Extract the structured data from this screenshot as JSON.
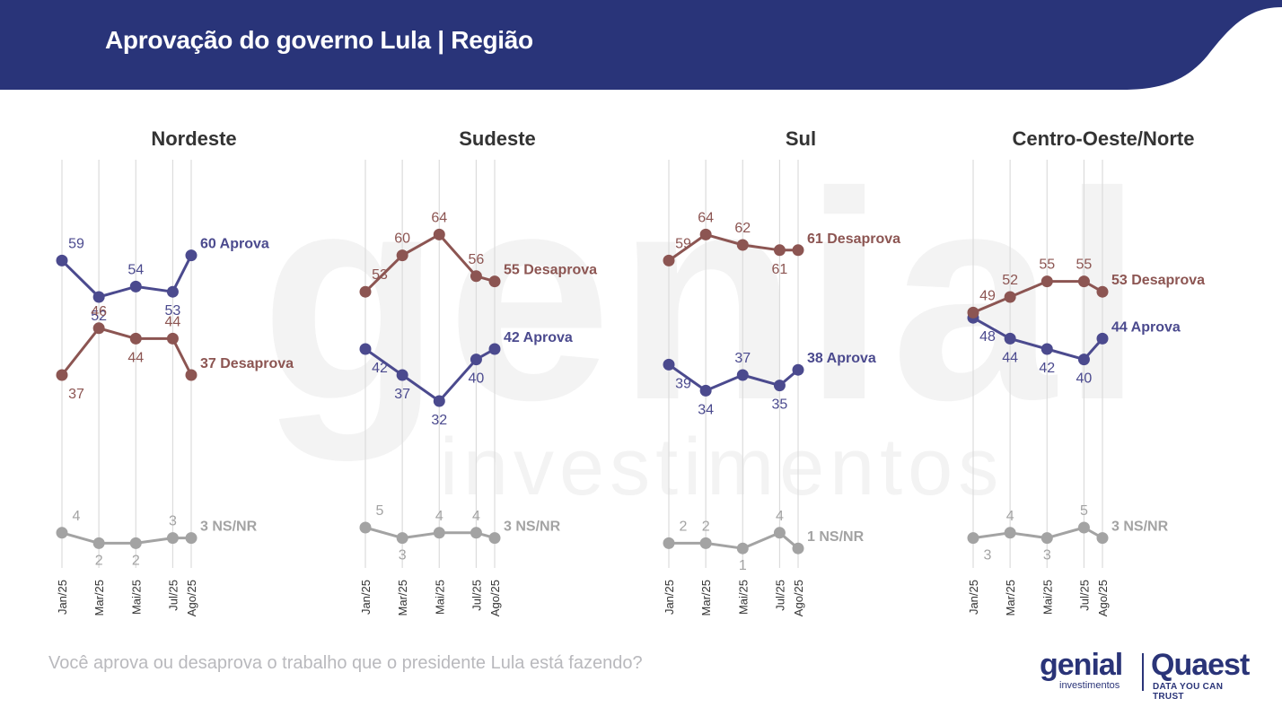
{
  "header": {
    "title": "Aprovação do governo Lula | Região"
  },
  "watermark": {
    "big": "genial",
    "small": "investimentos"
  },
  "footer": {
    "question": "Você aprova ou desaprova o trabalho que o presidente Lula está fazendo?"
  },
  "logos": {
    "genial": "genial",
    "genial_sub": "investimentos",
    "quaest": "Quaest",
    "quaest_tagline": "DATA YOU CAN TRUST"
  },
  "colors": {
    "header_bg": "#293479",
    "aprova": "#4b4a8e",
    "desaprova": "#8c5552",
    "nsnr": "#a3a3a3",
    "title": "#333333",
    "grid": "#dcdcdc",
    "tick": "#333333"
  },
  "chart_data": [
    {
      "type": "line",
      "title": "Nordeste",
      "x": [
        "Jan/25",
        "Mar/25",
        "Mai/25",
        "Jul/25",
        "Ago/25"
      ],
      "series": [
        {
          "name": "Aprova",
          "values": [
            59,
            52,
            54,
            53,
            60
          ],
          "end_label": "60 Aprova"
        },
        {
          "name": "Desaprova",
          "values": [
            37,
            46,
            44,
            44,
            37
          ],
          "end_label": "37 Desaprova"
        },
        {
          "name": "NS/NR",
          "values": [
            4,
            2,
            2,
            3,
            3
          ],
          "end_label": "3 NS/NR"
        }
      ]
    },
    {
      "type": "line",
      "title": "Sudeste",
      "x": [
        "Jan/25",
        "Mar/25",
        "Mai/25",
        "Jul/25",
        "Ago/25"
      ],
      "series": [
        {
          "name": "Aprova",
          "values": [
            42,
            37,
            32,
            40,
            42
          ],
          "end_label": "42 Aprova"
        },
        {
          "name": "Desaprova",
          "values": [
            53,
            60,
            64,
            56,
            55
          ],
          "end_label": "55 Desaprova"
        },
        {
          "name": "NS/NR",
          "values": [
            5,
            3,
            4,
            4,
            3
          ],
          "end_label": "3 NS/NR"
        }
      ]
    },
    {
      "type": "line",
      "title": "Sul",
      "x": [
        "Jan/25",
        "Mar/25",
        "Mai/25",
        "Jul/25",
        "Ago/25"
      ],
      "series": [
        {
          "name": "Aprova",
          "values": [
            39,
            34,
            37,
            35,
            38
          ],
          "end_label": "38 Aprova"
        },
        {
          "name": "Desaprova",
          "values": [
            59,
            64,
            62,
            61,
            61
          ],
          "end_label": "61 Desaprova"
        },
        {
          "name": "NS/NR",
          "values": [
            2,
            2,
            1,
            4,
            1
          ],
          "end_label": "1 NS/NR"
        }
      ]
    },
    {
      "type": "line",
      "title": "Centro-Oeste/Norte",
      "x": [
        "Jan/25",
        "Mar/25",
        "Mai/25",
        "Jul/25",
        "Ago/25"
      ],
      "series": [
        {
          "name": "Aprova",
          "values": [
            48,
            44,
            42,
            40,
            44
          ],
          "end_label": "44 Aprova"
        },
        {
          "name": "Desaprova",
          "values": [
            49,
            52,
            55,
            55,
            53
          ],
          "end_label": "53 Desaprova"
        },
        {
          "name": "NS/NR",
          "values": [
            3,
            4,
            3,
            5,
            3
          ],
          "end_label": "3 NS/NR"
        }
      ]
    }
  ]
}
